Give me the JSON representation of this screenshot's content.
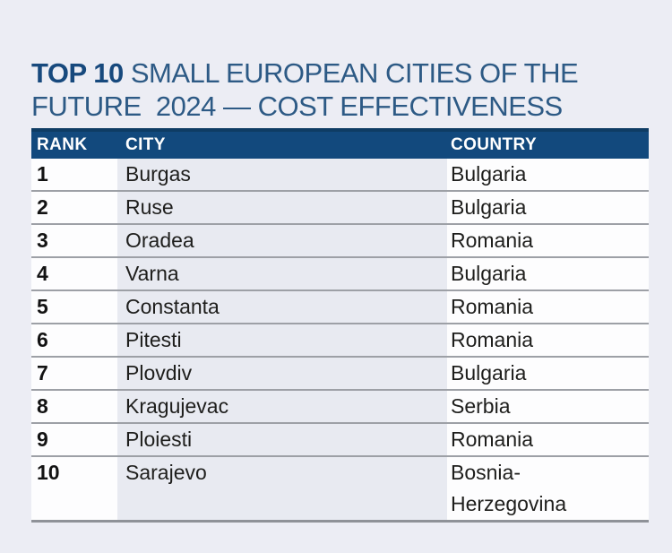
{
  "page": {
    "background_color": "#ecedf4"
  },
  "title": {
    "highlight": "TOP 10",
    "line1_rest": "SMALL EUROPEAN CITIES OF THE",
    "line2": "FUTURE  2024 — COST EFFECTIVENESS",
    "highlight_color": "#17497d",
    "text_color": "#2d5a85"
  },
  "table": {
    "header_bg": "#12497d",
    "header_top_border": "#0e3c64",
    "header_text_color": "#ffffff",
    "city_column_bg": "#e8eaf1",
    "row_bg": "#fdfdfe",
    "separator_color": "#9da0a6",
    "columns": [
      {
        "key": "rank",
        "label": "RANK"
      },
      {
        "key": "city",
        "label": "CITY"
      },
      {
        "key": "country",
        "label": "COUNTRY"
      }
    ],
    "rows": [
      {
        "rank": "1",
        "city": "Burgas",
        "country": "Bulgaria"
      },
      {
        "rank": "2",
        "city": "Ruse",
        "country": "Bulgaria"
      },
      {
        "rank": "3",
        "city": "Oradea",
        "country": "Romania"
      },
      {
        "rank": "4",
        "city": "Varna",
        "country": "Bulgaria"
      },
      {
        "rank": "5",
        "city": "Constanta",
        "country": "Romania"
      },
      {
        "rank": "6",
        "city": "Pitesti",
        "country": "Romania"
      },
      {
        "rank": "7",
        "city": "Plovdiv",
        "country": "Bulgaria"
      },
      {
        "rank": "8",
        "city": "Kragujevac",
        "country": "Serbia"
      },
      {
        "rank": "9",
        "city": "Ploiesti",
        "country": "Romania"
      },
      {
        "rank": "10",
        "city": "Sarajevo",
        "country": "Bosnia-Herzegovina"
      }
    ]
  },
  "chart_data": {
    "type": "table",
    "title": "TOP 10 SMALL EUROPEAN CITIES OF THE FUTURE 2024 — COST EFFECTIVENESS",
    "columns": [
      "RANK",
      "CITY",
      "COUNTRY"
    ],
    "rows": [
      [
        1,
        "Burgas",
        "Bulgaria"
      ],
      [
        2,
        "Ruse",
        "Bulgaria"
      ],
      [
        3,
        "Oradea",
        "Romania"
      ],
      [
        4,
        "Varna",
        "Bulgaria"
      ],
      [
        5,
        "Constanta",
        "Romania"
      ],
      [
        6,
        "Pitesti",
        "Romania"
      ],
      [
        7,
        "Plovdiv",
        "Bulgaria"
      ],
      [
        8,
        "Kragujevac",
        "Serbia"
      ],
      [
        9,
        "Ploiesti",
        "Romania"
      ],
      [
        10,
        "Sarajevo",
        "Bosnia-Herzegovina"
      ]
    ]
  }
}
